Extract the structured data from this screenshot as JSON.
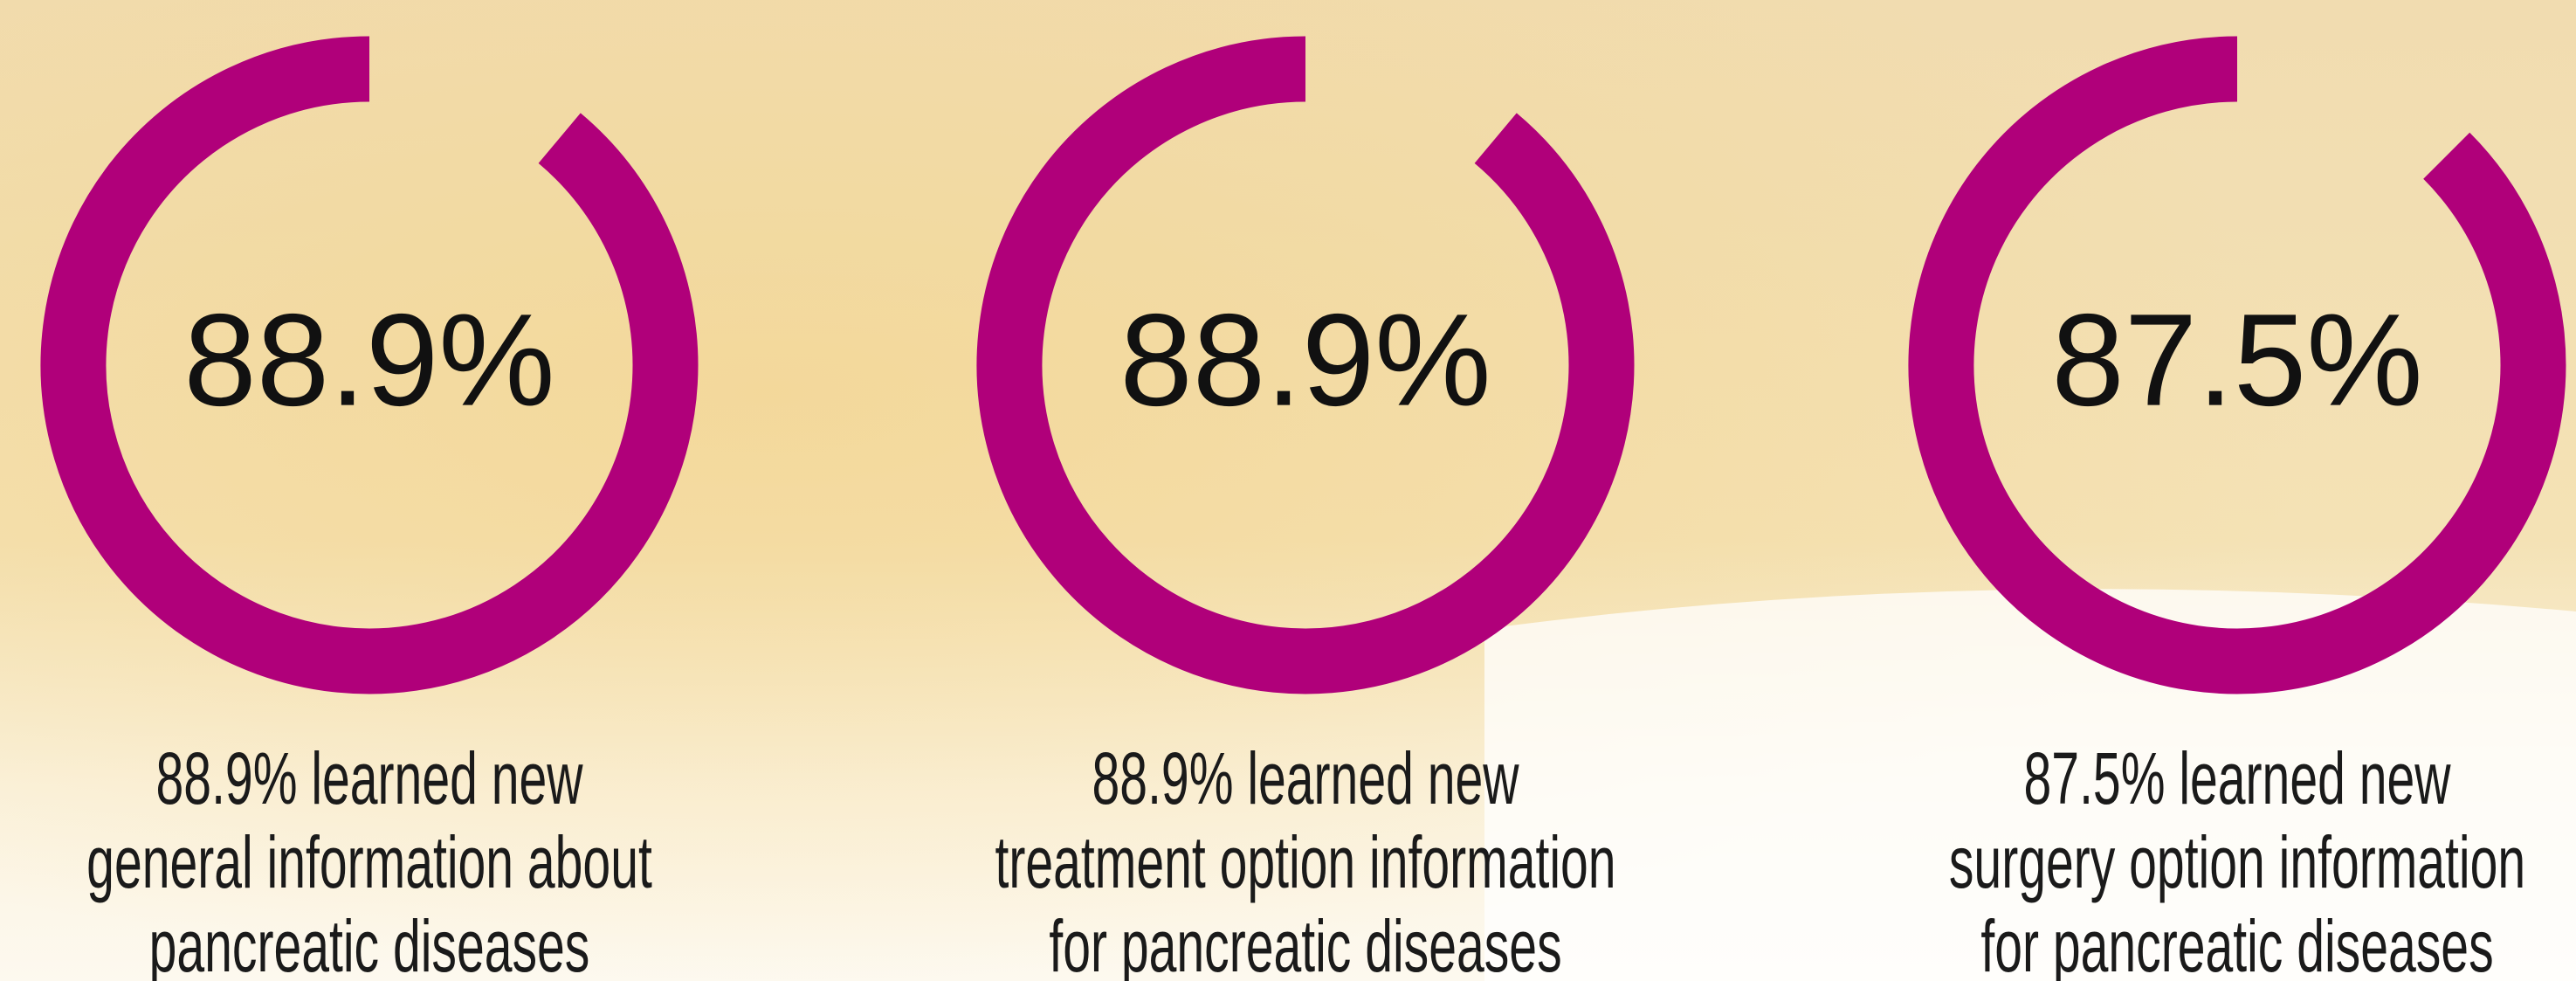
{
  "chart_data": [
    {
      "type": "donut",
      "values": [
        88.9
      ],
      "value_labels": [
        "88.9%"
      ],
      "color": "#b0007a",
      "caption": [
        "88.9% learned new",
        "general information about",
        "pancreatic diseases"
      ]
    },
    {
      "type": "donut",
      "values": [
        88.9
      ],
      "value_labels": [
        "88.9%"
      ],
      "color": "#b0007a",
      "caption": [
        "88.9% learned new",
        "treatment option information",
        "for pancreatic diseases"
      ]
    },
    {
      "type": "donut",
      "values": [
        87.5
      ],
      "value_labels": [
        "87.5%"
      ],
      "color": "#b0007a",
      "caption": [
        "87.5% learned new",
        "surgery option information",
        "for pancreatic diseases"
      ]
    }
  ]
}
